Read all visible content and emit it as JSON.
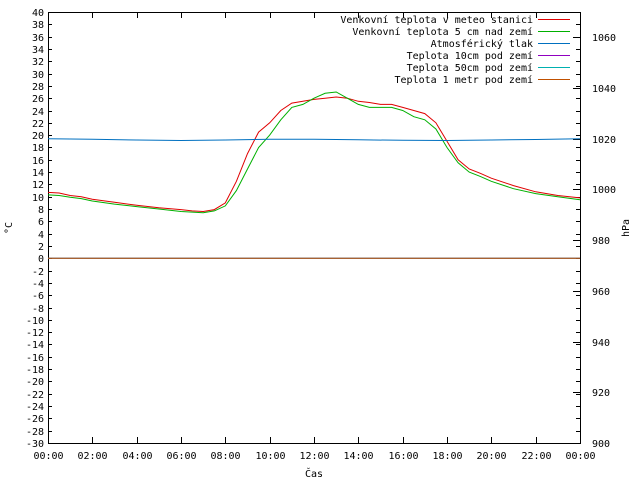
{
  "chart_data": {
    "type": "line",
    "xlabel": "Čas",
    "ylabel_left": "°C",
    "ylabel_right": "hPa",
    "grid": false,
    "legend_position": "top-right",
    "x_ticks": [
      "00:00",
      "02:00",
      "04:00",
      "06:00",
      "08:00",
      "10:00",
      "12:00",
      "14:00",
      "16:00",
      "18:00",
      "20:00",
      "22:00",
      "00:00"
    ],
    "x_range_hours": [
      0,
      24
    ],
    "y_left_range": [
      -30,
      40
    ],
    "y_left_step": 2,
    "y_right_range": [
      900,
      1070
    ],
    "y_right_ticks": [
      900,
      920,
      940,
      960,
      980,
      1000,
      1020,
      1040,
      1060
    ],
    "series": [
      {
        "name": "Venkovní teplota v meteo stanici",
        "color": "#e00000",
        "axis": "left",
        "x": [
          0,
          0.5,
          1,
          1.5,
          2,
          3,
          4,
          5,
          6,
          6.5,
          7,
          7.5,
          8,
          8.5,
          9,
          9.5,
          10,
          10.5,
          11,
          11.5,
          12,
          12.5,
          13,
          13.5,
          14,
          14.5,
          15,
          15.5,
          16,
          16.5,
          17,
          17.5,
          18,
          18.5,
          19,
          19.5,
          20,
          21,
          22,
          23,
          24
        ],
        "y": [
          10.7,
          10.6,
          10.2,
          10.0,
          9.6,
          9.1,
          8.6,
          8.2,
          7.9,
          7.7,
          7.6,
          7.9,
          9.0,
          12.5,
          17.0,
          20.5,
          22.0,
          24.0,
          25.2,
          25.5,
          25.8,
          26.0,
          26.2,
          26.0,
          25.5,
          25.3,
          25.0,
          25.0,
          24.5,
          24.0,
          23.5,
          22.0,
          19.0,
          16.0,
          14.5,
          13.8,
          13.0,
          11.8,
          10.8,
          10.2,
          9.8
        ]
      },
      {
        "name": "Venkovní teplota 5 cm nad zemí",
        "color": "#00b000",
        "axis": "left",
        "x": [
          0,
          0.5,
          1,
          1.5,
          2,
          3,
          4,
          5,
          6,
          6.5,
          7,
          7.5,
          8,
          8.5,
          9,
          9.5,
          10,
          10.5,
          11,
          11.5,
          12,
          12.5,
          13,
          13.5,
          14,
          14.5,
          15,
          15.5,
          16,
          16.5,
          17,
          17.5,
          18,
          18.5,
          19,
          19.5,
          20,
          21,
          22,
          23,
          24
        ],
        "y": [
          10.3,
          10.2,
          9.9,
          9.7,
          9.3,
          8.8,
          8.4,
          8.0,
          7.6,
          7.5,
          7.4,
          7.7,
          8.5,
          11.0,
          14.5,
          18.0,
          20.0,
          22.5,
          24.5,
          25.0,
          26.0,
          26.8,
          27.0,
          26.0,
          25.0,
          24.5,
          24.5,
          24.5,
          24.0,
          23.0,
          22.5,
          21.0,
          18.0,
          15.5,
          14.0,
          13.3,
          12.5,
          11.3,
          10.5,
          10.0,
          9.5
        ]
      },
      {
        "name": "Atmosférický tlak",
        "color": "#0070c0",
        "axis": "right",
        "x": [
          0,
          2,
          4,
          6,
          8,
          10,
          12,
          14,
          16,
          18,
          20,
          22,
          24
        ],
        "y": [
          1020.0,
          1019.8,
          1019.5,
          1019.3,
          1019.5,
          1019.8,
          1019.8,
          1019.6,
          1019.4,
          1019.3,
          1019.5,
          1019.7,
          1020.0
        ]
      },
      {
        "name": "Teplota 10cm pod zemí",
        "color": "#9000c0",
        "axis": "left",
        "x": [
          0,
          24
        ],
        "y": [
          0,
          0
        ]
      },
      {
        "name": "Teplota 50cm pod zemí",
        "color": "#00b0b0",
        "axis": "left",
        "x": [
          0,
          24
        ],
        "y": [
          0,
          0
        ]
      },
      {
        "name": "Teplota 1 metr pod zemí",
        "color": "#c05000",
        "axis": "left",
        "x": [
          0,
          24
        ],
        "y": [
          0,
          0
        ]
      }
    ]
  }
}
